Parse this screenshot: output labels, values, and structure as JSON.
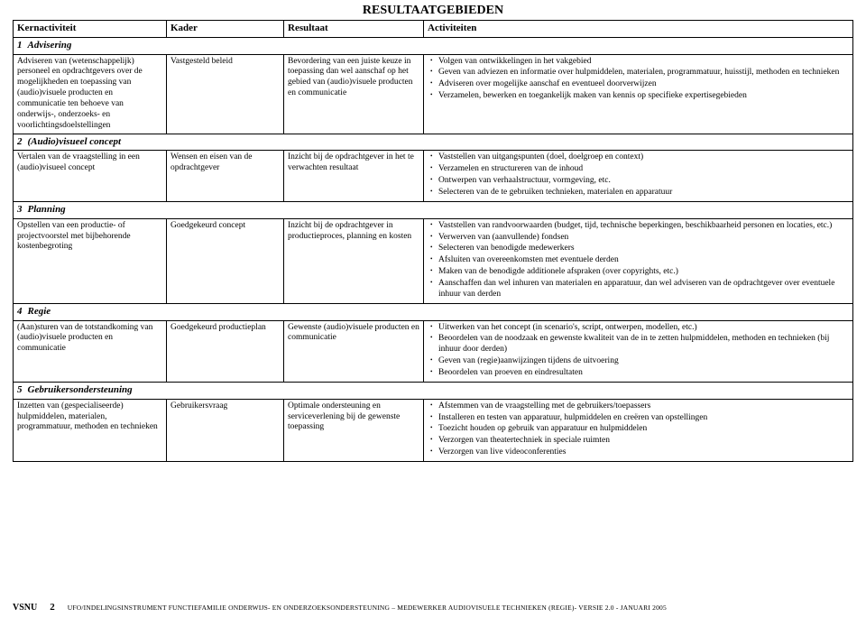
{
  "title": "RESULTAATGEBIEDEN",
  "headers": {
    "c1": "Kernactiviteit",
    "c2": "Kader",
    "c3": "Resultaat",
    "c4": "Activiteiten"
  },
  "sections": [
    {
      "num": "1",
      "label": "Advisering",
      "kern": "Adviseren van (wetenschappelijk) personeel en opdrachtgevers over de mogelijkheden en toepassing van (audio)visuele producten en communicatie ten behoeve van onderwijs-, onderzoeks- en voorlichtingsdoelstellingen",
      "kader": "Vastgesteld beleid",
      "result": "Bevordering van een juiste keuze in toepassing dan wel aanschaf op het gebied van (audio)visuele producten en communicatie",
      "acts": [
        "Volgen van ontwikkelingen in het vakgebied",
        "Geven van adviezen en informatie over hulpmiddelen, materialen, programmatuur, huisstijl, methoden en technieken",
        "Adviseren over mogelijke aanschaf en eventueel doorverwijzen",
        "Verzamelen, bewerken en toegankelijk maken van kennis op specifieke expertisegebieden"
      ]
    },
    {
      "num": "2",
      "label": "(Audio)visueel concept",
      "kern": "Vertalen van de vraagstelling in een (audio)visueel concept",
      "kader": "Wensen en eisen van de opdrachtgever",
      "result": "Inzicht bij de opdrachtgever in het te verwachten resultaat",
      "acts": [
        "Vaststellen van uitgangspunten (doel, doelgroep en context)",
        "Verzamelen en structureren van de inhoud",
        "Ontwerpen van verhaalstructuur, vormgeving, etc.",
        "Selecteren van de te gebruiken technieken, materialen en apparatuur"
      ]
    },
    {
      "num": "3",
      "label": "Planning",
      "kern": "Opstellen van een productie- of projectvoorstel met bijbehorende kostenbegroting",
      "kader": "Goedgekeurd concept",
      "result": "Inzicht bij de opdrachtgever in productieproces, planning en kosten",
      "acts": [
        "Vaststellen van randvoorwaarden (budget, tijd, technische beperkingen, beschikbaarheid personen en locaties, etc.)",
        "Verwerven van (aanvullende) fondsen",
        "Selecteren van benodigde medewerkers",
        "Afsluiten van overeenkomsten met eventuele derden",
        "Maken van de benodigde additionele afspraken (over copyrights, etc.)",
        "Aanschaffen dan wel inhuren van materialen en apparatuur, dan wel adviseren van de opdrachtgever over eventuele inhuur van derden"
      ]
    },
    {
      "num": "4",
      "label": "Regie",
      "kern": "(Aan)sturen van de totstandkoming van (audio)visuele producten en communicatie",
      "kader": "Goedgekeurd productieplan",
      "result": "Gewenste (audio)visuele producten en communicatie",
      "acts": [
        "Uitwerken van het concept (in scenario's, script, ontwerpen, modellen, etc.)",
        "Beoordelen van de noodzaak en gewenste kwaliteit van de in te zetten hulpmiddelen, methoden en technieken (bij inhuur door derden)",
        "Geven van (regie)aanwijzingen tijdens de uitvoering",
        "Beoordelen van proeven en eindresultaten"
      ]
    },
    {
      "num": "5",
      "label": "Gebruikersondersteuning",
      "kern": "Inzetten van (gespecialiseerde) hulpmiddelen, materialen, programmatuur, methoden en technieken",
      "kader": "Gebruikersvraag",
      "result": "Optimale ondersteuning en serviceverlening bij de gewenste toepassing",
      "acts": [
        "Afstemmen van de vraagstelling met de gebruikers/toepassers",
        "Installeren en testen van apparatuur, hulpmiddelen en creëren van opstellingen",
        "Toezicht houden op gebruik van apparatuur en hulpmiddelen",
        "Verzorgen van theatertechniek in speciale ruimten",
        "Verzorgen van live videoconferenties"
      ]
    }
  ],
  "footer": {
    "org": "VSNU",
    "page": "2",
    "path": "UFO/INDELINGSINSTRUMENT FUNCTIEFAMILIE ONDERWIJS- EN ONDERZOEKSONDERSTEUNING – MEDEWERKER AUDIOVISUELE TECHNIEKEN (REGIE)- VERSIE 2.0 - JANUARI 2005"
  }
}
